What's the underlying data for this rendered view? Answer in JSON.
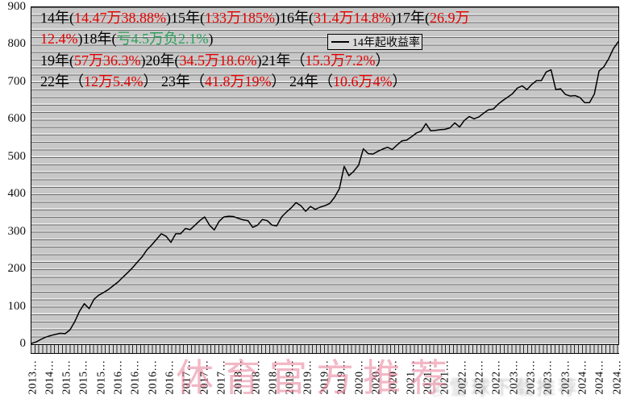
{
  "colors": {
    "black": "#000000",
    "red": "#e60000",
    "green": "#2ca05a",
    "line": "#000000",
    "watermark_pink": "#e87d96",
    "watermark_gray": "#8a8a8a"
  },
  "legend": {
    "label": "14年起收益率"
  },
  "watermarks": {
    "primary": "体育官方推荐",
    "secondary": "②雪球下载推荐"
  },
  "annotations": {
    "lines": [
      [
        {
          "t": "14年(",
          "c": "black"
        },
        {
          "t": "14.47万38.88%",
          "c": "red"
        },
        {
          "t": ")15年(",
          "c": "black"
        },
        {
          "t": "133万185%",
          "c": "red"
        },
        {
          "t": ")16年(",
          "c": "black"
        },
        {
          "t": "31.4万14.8%",
          "c": "red"
        },
        {
          "t": ")17年(",
          "c": "black"
        },
        {
          "t": "26.9万",
          "c": "red"
        }
      ],
      [
        {
          "t": "12.4%",
          "c": "red"
        },
        {
          "t": ")18年(",
          "c": "black"
        },
        {
          "t": "亏4.5万负2.1%",
          "c": "green"
        },
        {
          "t": ")",
          "c": "black"
        }
      ],
      [
        {
          "t": "19年(",
          "c": "black"
        },
        {
          "t": "57万36.3%",
          "c": "red"
        },
        {
          "t": ")20年(",
          "c": "black"
        },
        {
          "t": "34.5万18.6%",
          "c": "red"
        },
        {
          "t": ")21年（",
          "c": "black"
        },
        {
          "t": "15.3万7.2%",
          "c": "red"
        },
        {
          "t": "）",
          "c": "black"
        }
      ],
      [
        {
          "t": "22年（",
          "c": "black"
        },
        {
          "t": "12万5.4%",
          "c": "red"
        },
        {
          "t": "） 23年（",
          "c": "black"
        },
        {
          "t": "41.8万19%",
          "c": "red"
        },
        {
          "t": "） 24年（",
          "c": "black"
        },
        {
          "t": "10.6万4%",
          "c": "red"
        },
        {
          "t": "）",
          "c": "black"
        }
      ]
    ]
  },
  "chart_data": {
    "type": "line",
    "title": "",
    "xlabel": "",
    "ylabel": "",
    "ylim": [
      0,
      900
    ],
    "y_ticks": [
      900,
      800,
      700,
      600,
      500,
      400,
      300,
      200,
      100,
      0
    ],
    "grid": "horizontal lines every 20 units on gray plot background",
    "legend_position": "top-center",
    "x_tick_labels": [
      "2013…",
      "2014…",
      "2015…",
      "2015…",
      "2015…",
      "2016…",
      "2016…",
      "2016…",
      "2016…",
      "2017…",
      "2017…",
      "2017…",
      "2018…",
      "2018…",
      "2018…",
      "2019…",
      "2019…",
      "2019…",
      "2019…",
      "2020…",
      "2020…",
      "2020…",
      "2021…",
      "2021…",
      "2021…",
      "2022…",
      "2022…",
      "2022…",
      "2023…",
      "2023…",
      "2023…",
      "2023…",
      "2024…",
      "2024…",
      "2024…"
    ],
    "annual_returns": [
      {
        "year": "14年",
        "amount": "14.47万",
        "pct": "38.88%"
      },
      {
        "year": "15年",
        "amount": "133万",
        "pct": "185%"
      },
      {
        "year": "16年",
        "amount": "31.4万",
        "pct": "14.8%"
      },
      {
        "year": "17年",
        "amount": "26.9万",
        "pct": "12.4%"
      },
      {
        "year": "18年",
        "amount": "亏4.5万",
        "pct": "负2.1%"
      },
      {
        "year": "19年",
        "amount": "57万",
        "pct": "36.3%"
      },
      {
        "year": "20年",
        "amount": "34.5万",
        "pct": "18.6%"
      },
      {
        "year": "21年",
        "amount": "15.3万",
        "pct": "7.2%"
      },
      {
        "year": "22年",
        "amount": "12万",
        "pct": "5.4%"
      },
      {
        "year": "23年",
        "amount": "41.8万",
        "pct": "19%"
      },
      {
        "year": "24年",
        "amount": "10.6万",
        "pct": "4%"
      }
    ],
    "series": [
      {
        "name": "14年起收益率",
        "note": "cumulative return %, values sampled evenly along the time axis 2013→2024",
        "values": [
          2,
          6,
          13,
          19,
          23,
          26,
          29,
          28,
          38,
          60,
          88,
          108,
          95,
          120,
          131,
          138,
          146,
          156,
          166,
          179,
          191,
          204,
          219,
          233,
          252,
          265,
          280,
          295,
          288,
          272,
          295,
          295,
          309,
          306,
          318,
          330,
          340,
          318,
          305,
          328,
          340,
          342,
          341,
          336,
          332,
          330,
          312,
          318,
          333,
          330,
          318,
          316,
          340,
          353,
          364,
          378,
          370,
          355,
          368,
          360,
          366,
          370,
          376,
          392,
          415,
          475,
          450,
          462,
          478,
          522,
          509,
          508,
          515,
          521,
          526,
          520,
          532,
          543,
          545,
          554,
          564,
          569,
          589,
          570,
          571,
          573,
          574,
          578,
          591,
          580,
          598,
          608,
          602,
          607,
          617,
          626,
          628,
          641,
          651,
          660,
          669,
          684,
          690,
          680,
          694,
          704,
          704,
          727,
          733,
          680,
          682,
          667,
          663,
          664,
          659,
          645,
          645,
          668,
          730,
          741,
          763,
          790,
          808
        ]
      }
    ]
  }
}
